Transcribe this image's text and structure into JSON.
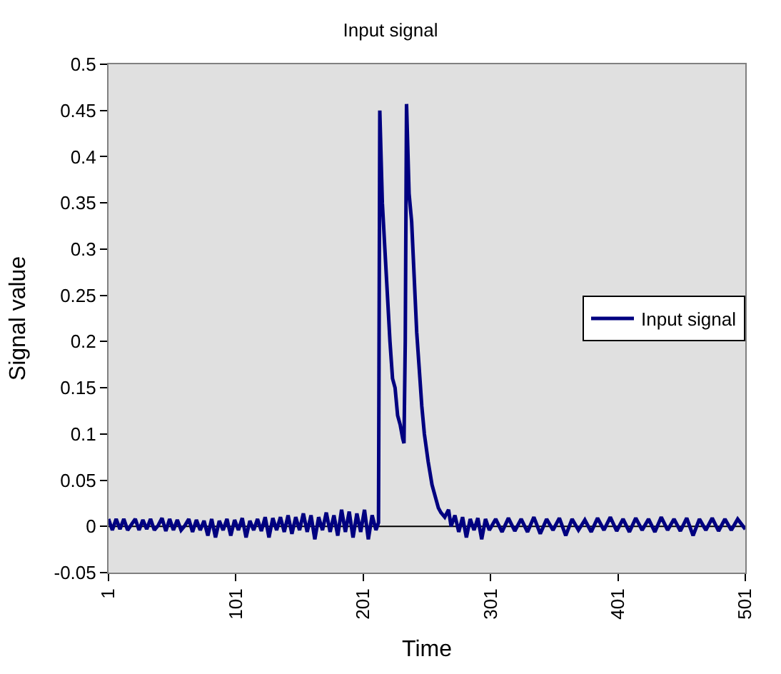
{
  "chart_data": {
    "type": "line",
    "title": "Input signal",
    "xlabel": "Time",
    "ylabel": "Signal value",
    "x": [
      1,
      4,
      7,
      10,
      13,
      16,
      19,
      22,
      25,
      28,
      31,
      34,
      37,
      40,
      43,
      46,
      49,
      52,
      55,
      58,
      61,
      64,
      67,
      70,
      73,
      76,
      79,
      82,
      85,
      88,
      91,
      94,
      97,
      100,
      103,
      106,
      109,
      112,
      115,
      118,
      121,
      124,
      127,
      130,
      133,
      136,
      139,
      142,
      145,
      148,
      151,
      154,
      157,
      160,
      163,
      166,
      169,
      172,
      175,
      178,
      181,
      184,
      187,
      190,
      193,
      196,
      199,
      202,
      205,
      208,
      211,
      213,
      214,
      216,
      218,
      220,
      222,
      224,
      226,
      228,
      230,
      232,
      233,
      234,
      235,
      237,
      239,
      241,
      243,
      245,
      247,
      249,
      252,
      255,
      258,
      260,
      262,
      265,
      268,
      270,
      273,
      276,
      279,
      282,
      285,
      288,
      291,
      294,
      297,
      300,
      305,
      310,
      315,
      320,
      325,
      330,
      335,
      340,
      345,
      350,
      355,
      360,
      365,
      370,
      375,
      380,
      385,
      390,
      395,
      400,
      405,
      410,
      415,
      420,
      425,
      430,
      435,
      440,
      445,
      450,
      455,
      460,
      465,
      470,
      475,
      480,
      485,
      490,
      495,
      501
    ],
    "series": [
      {
        "name": "Input signal",
        "color": "#000080",
        "values": [
          0.008,
          -0.004,
          0.008,
          -0.003,
          0.008,
          -0.004,
          0.002,
          0.008,
          -0.004,
          0.007,
          -0.003,
          0.008,
          -0.004,
          0.001,
          0.009,
          -0.005,
          0.008,
          -0.004,
          0.007,
          -0.004,
          0.001,
          0.008,
          -0.006,
          0.007,
          -0.004,
          0.006,
          -0.01,
          0.008,
          -0.012,
          0.006,
          -0.004,
          0.008,
          -0.01,
          0.007,
          -0.004,
          0.009,
          -0.012,
          0.006,
          -0.004,
          0.008,
          -0.005,
          0.01,
          -0.012,
          0.009,
          -0.004,
          0.01,
          -0.006,
          0.012,
          -0.008,
          0.01,
          -0.004,
          0.014,
          -0.006,
          0.012,
          -0.014,
          0.01,
          -0.004,
          0.015,
          -0.006,
          0.012,
          -0.01,
          0.018,
          -0.006,
          0.016,
          -0.012,
          0.014,
          -0.006,
          0.018,
          -0.014,
          0.012,
          -0.004,
          0.004,
          0.45,
          0.35,
          0.3,
          0.25,
          0.2,
          0.16,
          0.15,
          0.12,
          0.11,
          0.095,
          0.09,
          0.2,
          0.457,
          0.36,
          0.33,
          0.27,
          0.21,
          0.17,
          0.13,
          0.1,
          0.07,
          0.045,
          0.03,
          0.02,
          0.015,
          0.01,
          0.018,
          0.0,
          0.012,
          -0.006,
          0.01,
          -0.012,
          0.008,
          -0.004,
          0.009,
          -0.014,
          0.008,
          -0.004,
          0.008,
          -0.006,
          0.009,
          -0.005,
          0.008,
          -0.006,
          0.01,
          -0.008,
          0.008,
          -0.004,
          0.009,
          -0.01,
          0.008,
          -0.004,
          0.007,
          -0.006,
          0.009,
          -0.004,
          0.01,
          -0.005,
          0.008,
          -0.006,
          0.009,
          -0.004,
          0.008,
          -0.006,
          0.01,
          -0.004,
          0.008,
          -0.005,
          0.009,
          -0.01,
          0.008,
          -0.004,
          0.009,
          -0.005,
          0.008,
          -0.004,
          0.008,
          -0.003
        ]
      }
    ],
    "xlim": [
      1,
      501
    ],
    "xticks": [
      1,
      101,
      201,
      301,
      401,
      501
    ],
    "ylim": [
      -0.05,
      0.5
    ],
    "yticks": [
      -0.05,
      0,
      0.05,
      0.1,
      0.15,
      0.2,
      0.25,
      0.3,
      0.35,
      0.4,
      0.45,
      0.5
    ],
    "ref_lines": [
      {
        "axis": "y",
        "value": 0,
        "color": "#000000",
        "line_style": "solid"
      }
    ],
    "legend": "right",
    "marker": "none",
    "line_style": "solid"
  }
}
